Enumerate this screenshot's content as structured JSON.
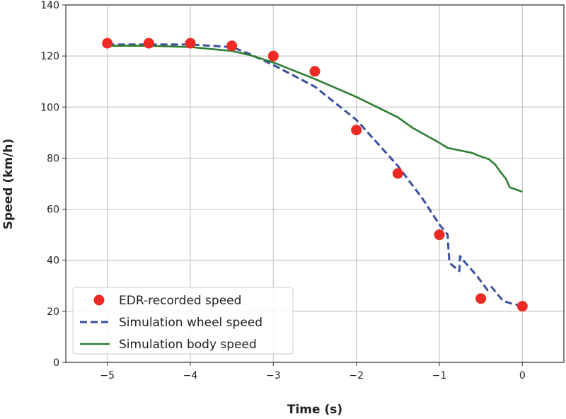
{
  "chart_data": {
    "type": "line",
    "title": "",
    "xlabel": "Time (s)",
    "ylabel": "Speed (km/h)",
    "xlim": [
      -5.5,
      0.5
    ],
    "ylim": [
      0,
      140
    ],
    "xticks": [
      -5,
      -4,
      -3,
      -2,
      -1,
      0
    ],
    "xtick_labels": [
      "−5",
      "−4",
      "−3",
      "−2",
      "−1",
      "0"
    ],
    "yticks": [
      0,
      20,
      40,
      60,
      80,
      100,
      120,
      140
    ],
    "ytick_labels": [
      "0",
      "20",
      "40",
      "60",
      "80",
      "100",
      "120",
      "140"
    ],
    "grid": true,
    "legend_position": "lower-left",
    "series": [
      {
        "name": "EDR-recorded speed",
        "style": "markers",
        "color": "#ee2a24",
        "x": [
          -5,
          -4.5,
          -4,
          -3.5,
          -3,
          -2.5,
          -2,
          -1.5,
          -1,
          -0.5,
          0
        ],
        "y": [
          125,
          125,
          125,
          124,
          120,
          114,
          91,
          74,
          50,
          25,
          22
        ]
      },
      {
        "name": "Simulation wheel speed",
        "style": "dashed",
        "color": "#3a4fa0",
        "x": [
          -5,
          -4.5,
          -4,
          -3.5,
          -3.3,
          -3,
          -2.5,
          -2,
          -1.5,
          -1.2,
          -1,
          -0.9,
          -0.89,
          -0.88,
          -0.86,
          -0.76,
          -0.75,
          -0.7,
          -0.55,
          -0.42,
          -0.37,
          -0.23,
          -0.1,
          0
        ],
        "y": [
          124.5,
          124.5,
          124.5,
          123.5,
          121,
          116.5,
          108,
          95,
          77,
          64,
          54,
          50,
          44,
          40,
          38.5,
          35.8,
          41.6,
          39.5,
          34,
          28.3,
          29.5,
          24,
          22.7,
          22.5
        ]
      },
      {
        "name": "Simulation body speed",
        "style": "solid",
        "color": "#2e7d32",
        "x": [
          -5,
          -4.5,
          -4,
          -3.5,
          -3.3,
          -3,
          -2.5,
          -2,
          -1.5,
          -1.33,
          -1,
          -0.9,
          -0.78,
          -0.6,
          -0.53,
          -0.4,
          -0.33,
          -0.25,
          -0.2,
          -0.15,
          -0.1,
          0
        ],
        "y": [
          124,
          124,
          123.5,
          122,
          120.5,
          117.5,
          111,
          104,
          96,
          92,
          86,
          84,
          83.2,
          82,
          81,
          79.5,
          77.6,
          74,
          72,
          68.5,
          68,
          66.8
        ]
      }
    ]
  }
}
